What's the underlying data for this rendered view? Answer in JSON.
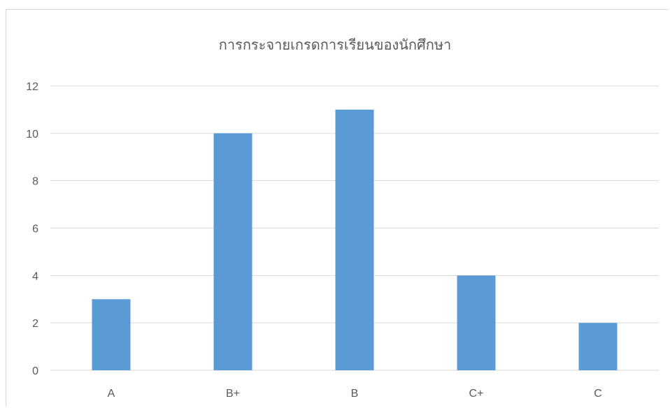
{
  "chart_data": {
    "type": "bar",
    "title": "การกระจายเกรดการเรียนของนักศึกษา",
    "categories": [
      "A",
      "B+",
      "B",
      "C+",
      "C"
    ],
    "values": [
      3,
      10,
      11,
      4,
      2
    ],
    "xlabel": "",
    "ylabel": "",
    "ylim": [
      0,
      12
    ],
    "yticks": [
      "0",
      "2",
      "4",
      "6",
      "8",
      "10",
      "12"
    ],
    "grid": true,
    "legend": "none",
    "bar_color": "#5b9bd5",
    "grid_color": "#d9d9d9",
    "text_color": "#595959"
  }
}
